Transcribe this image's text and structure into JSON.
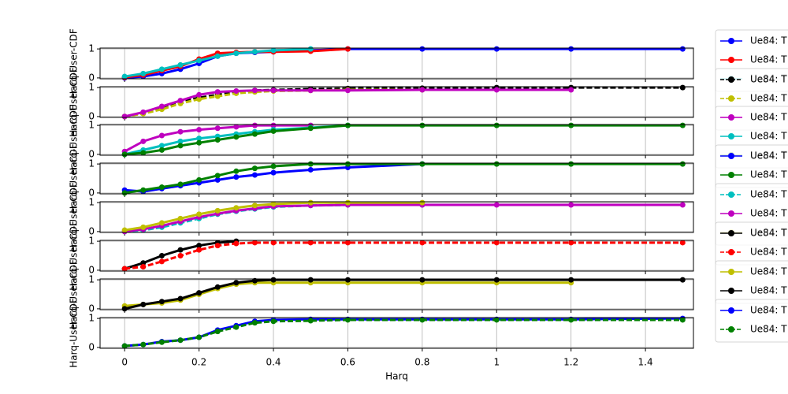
{
  "chart_data": [
    {
      "type": "line",
      "y_label": "Harq-User-CDF",
      "x": [
        0,
        0.05,
        0.1,
        0.15,
        0.2,
        0.25,
        0.3,
        0.35,
        0.4,
        0.5,
        0.6,
        0.8,
        1.0,
        1.2,
        1.5
      ],
      "xlim": [
        -0.066,
        1.529
      ],
      "xticks": [
        {
          "value": 0,
          "label": "0.0"
        },
        0.2,
        0.4,
        0.6,
        0.8,
        {
          "value": 1,
          "label": "1.0"
        },
        1.2,
        1.4
      ],
      "ylim": [
        -0.03,
        1.03
      ],
      "yticks": [
        0,
        1
      ],
      "grid": true,
      "series": [
        {
          "name": "Ue84: T",
          "color": "#0000ff",
          "linestyle": "-",
          "values": [
            0,
            0.05,
            0.15,
            0.3,
            0.5,
            0.75,
            0.85,
            0.88,
            0.9,
            0.95,
            1,
            1,
            1,
            1,
            1
          ]
        },
        {
          "name": "Ue84: T",
          "color": "#ff0000",
          "linestyle": "-",
          "values": [
            0.02,
            0.1,
            0.25,
            0.4,
            0.65,
            0.85,
            0.88,
            0.9,
            0.9,
            0.92,
            1,
            null,
            null,
            null,
            null
          ]
        },
        {
          "name": "Ue84: T",
          "color": "#00bfbf",
          "linestyle": "-",
          "values": [
            0.05,
            0.15,
            0.3,
            0.45,
            0.6,
            0.75,
            0.85,
            0.9,
            0.95,
            1,
            null,
            null,
            null,
            null,
            null
          ]
        }
      ]
    },
    {
      "type": "line",
      "y_label": "Harq-User-CDF",
      "x": [
        0,
        0.05,
        0.1,
        0.15,
        0.2,
        0.25,
        0.3,
        0.35,
        0.4,
        0.5,
        0.6,
        0.8,
        1.0,
        1.2,
        1.5
      ],
      "xlim": [
        -0.066,
        1.529
      ],
      "xticks": [
        0,
        0.2,
        0.4,
        0.6,
        0.8,
        1,
        1.2,
        1.4
      ],
      "ylim": [
        -0.03,
        1.03
      ],
      "yticks": [
        0,
        1
      ],
      "grid": true,
      "series": [
        {
          "name": "Ue84: T",
          "color": "#000000",
          "linestyle": "--",
          "values": [
            0,
            0.12,
            0.3,
            0.5,
            0.65,
            0.75,
            0.85,
            0.9,
            0.92,
            0.95,
            0.97,
            0.98,
            1,
            1,
            1
          ]
        },
        {
          "name": "Ue84: T",
          "color": "#bfbf00",
          "linestyle": "--",
          "values": [
            0,
            0.1,
            0.25,
            0.45,
            0.6,
            0.7,
            0.8,
            0.85,
            0.88,
            0.9,
            0.92,
            0.92,
            null,
            null,
            null
          ]
        },
        {
          "name": "Ue84: T",
          "color": "#bf00bf",
          "linestyle": "-",
          "values": [
            0,
            0.15,
            0.35,
            0.55,
            0.75,
            0.85,
            0.88,
            0.9,
            0.9,
            0.9,
            0.9,
            0.92,
            0.92,
            0.92,
            null
          ]
        }
      ]
    },
    {
      "type": "line",
      "y_label": "Harq-User-CDF",
      "x": [
        0,
        0.05,
        0.1,
        0.15,
        0.2,
        0.25,
        0.3,
        0.35,
        0.4,
        0.5,
        0.6,
        0.8,
        1.0,
        1.2,
        1.5
      ],
      "xlim": [
        -0.066,
        1.529
      ],
      "xticks": [
        0,
        0.2,
        0.4,
        0.6,
        0.8,
        1,
        1.2,
        1.4
      ],
      "ylim": [
        -0.03,
        1.03
      ],
      "yticks": [
        0,
        1
      ],
      "grid": true,
      "series": [
        {
          "name": "Ue84: T",
          "color": "#bf00bf",
          "linestyle": "-",
          "values": [
            0.1,
            0.45,
            0.65,
            0.78,
            0.85,
            0.9,
            0.95,
            1,
            1,
            1,
            null,
            null,
            null,
            null,
            null
          ]
        },
        {
          "name": "Ue84: T",
          "color": "#00bfbf",
          "linestyle": "-",
          "values": [
            0,
            0.15,
            0.3,
            0.45,
            0.55,
            0.62,
            0.7,
            0.78,
            0.85,
            0.92,
            1,
            null,
            null,
            null,
            null
          ]
        },
        {
          "name": "Ue84: T",
          "color": "#008000",
          "linestyle": "-",
          "values": [
            0,
            0.05,
            0.15,
            0.3,
            0.4,
            0.5,
            0.6,
            0.7,
            0.8,
            0.9,
            1,
            1,
            1,
            1,
            1
          ]
        }
      ]
    },
    {
      "type": "line",
      "y_label": "Harq-User-CDF",
      "x": [
        0,
        0.05,
        0.1,
        0.15,
        0.2,
        0.25,
        0.3,
        0.35,
        0.4,
        0.5,
        0.6,
        0.8,
        1.0,
        1.2,
        1.5
      ],
      "xlim": [
        -0.066,
        1.529
      ],
      "xticks": [
        0,
        0.2,
        0.4,
        0.6,
        0.8,
        1,
        1.2,
        1.4
      ],
      "ylim": [
        -0.03,
        1.03
      ],
      "yticks": [
        0,
        1
      ],
      "grid": true,
      "series": [
        {
          "name": "Ue84: T",
          "color": "#0000ff",
          "linestyle": "-",
          "values": [
            0.1,
            0.05,
            0.15,
            0.25,
            0.35,
            0.45,
            0.55,
            0.62,
            0.7,
            0.8,
            0.88,
            1,
            null,
            null,
            null
          ]
        },
        {
          "name": "Ue84: T",
          "color": "#008000",
          "linestyle": "-",
          "values": [
            0,
            0.1,
            0.2,
            0.3,
            0.45,
            0.6,
            0.75,
            0.85,
            0.92,
            1,
            1,
            1,
            1,
            1,
            1
          ]
        }
      ]
    },
    {
      "type": "line",
      "y_label": "Harq-User-CDF",
      "x": [
        0,
        0.05,
        0.1,
        0.15,
        0.2,
        0.25,
        0.3,
        0.35,
        0.4,
        0.5,
        0.6,
        0.8,
        1.0,
        1.2,
        1.5
      ],
      "xlim": [
        -0.066,
        1.529
      ],
      "xticks": [
        0,
        0.2,
        0.4,
        0.6,
        0.8,
        1,
        1.2,
        1.4
      ],
      "ylim": [
        -0.03,
        1.03
      ],
      "yticks": [
        0,
        1
      ],
      "grid": true,
      "series": [
        {
          "name": "Ue84: T",
          "color": "#00bfbf",
          "linestyle": "--",
          "values": [
            0,
            0.05,
            0.15,
            0.3,
            0.45,
            0.6,
            0.7,
            0.78,
            0.85,
            0.9,
            0.92,
            0.92,
            null,
            null,
            null
          ]
        },
        {
          "name": "Ue84: T",
          "color": "#bf00bf",
          "linestyle": "-",
          "values": [
            0,
            0.08,
            0.2,
            0.35,
            0.5,
            0.62,
            0.72,
            0.8,
            0.87,
            0.9,
            0.92,
            0.92,
            0.92,
            0.92,
            0.92
          ]
        },
        {
          "name": "Ue84: T",
          "color": "#bfbf00",
          "linestyle": "-",
          "values": [
            0.05,
            0.15,
            0.3,
            0.45,
            0.6,
            0.72,
            0.82,
            0.9,
            0.95,
            1,
            1,
            1,
            null,
            null,
            null
          ]
        }
      ]
    },
    {
      "type": "line",
      "y_label": "Harq-User-CDF",
      "x": [
        0,
        0.05,
        0.1,
        0.15,
        0.2,
        0.25,
        0.3,
        0.35,
        0.4,
        0.5,
        0.6,
        0.8,
        1.0,
        1.2,
        1.5
      ],
      "xlim": [
        -0.066,
        1.529
      ],
      "xticks": [
        0,
        0.2,
        0.4,
        0.6,
        0.8,
        1,
        1.2,
        1.4
      ],
      "ylim": [
        -0.03,
        1.03
      ],
      "yticks": [
        0,
        1
      ],
      "grid": true,
      "series": [
        {
          "name": "Ue84: T",
          "color": "#000000",
          "linestyle": "-",
          "values": [
            0.05,
            0.25,
            0.5,
            0.7,
            0.85,
            0.95,
            1,
            null,
            null,
            null,
            null,
            null,
            null,
            null,
            null
          ]
        },
        {
          "name": "Ue84: T",
          "color": "#ff0000",
          "linestyle": "--",
          "values": [
            0.05,
            0.12,
            0.3,
            0.5,
            0.7,
            0.85,
            0.92,
            0.95,
            0.95,
            0.95,
            0.95,
            0.95,
            0.95,
            0.95,
            0.95
          ]
        }
      ]
    },
    {
      "type": "line",
      "y_label": "Harq-User-CDF",
      "x": [
        0,
        0.05,
        0.1,
        0.15,
        0.2,
        0.25,
        0.3,
        0.35,
        0.4,
        0.5,
        0.6,
        0.8,
        1.0,
        1.2,
        1.5
      ],
      "xlim": [
        -0.066,
        1.529
      ],
      "xticks": [
        0,
        0.2,
        0.4,
        0.6,
        0.8,
        1,
        1.2,
        1.4
      ],
      "ylim": [
        -0.03,
        1.03
      ],
      "yticks": [
        0,
        1
      ],
      "grid": true,
      "series": [
        {
          "name": "Ue84: T",
          "color": "#bfbf00",
          "linestyle": "-",
          "values": [
            0.1,
            0.15,
            0.2,
            0.3,
            0.5,
            0.7,
            0.85,
            0.9,
            0.9,
            0.9,
            0.9,
            0.9,
            0.9,
            0.9,
            null
          ]
        },
        {
          "name": "Ue84: T",
          "color": "#000000",
          "linestyle": "-",
          "values": [
            0,
            0.15,
            0.25,
            0.35,
            0.55,
            0.75,
            0.9,
            0.97,
            1,
            1,
            1,
            1,
            1,
            1,
            1
          ]
        }
      ]
    },
    {
      "type": "line",
      "y_label": "Harq-User-CDF",
      "x_label": "Harq",
      "show_xticks": true,
      "x": [
        0,
        0.05,
        0.1,
        0.15,
        0.2,
        0.25,
        0.3,
        0.35,
        0.4,
        0.5,
        0.6,
        0.8,
        1.0,
        1.2,
        1.5
      ],
      "xlim": [
        -0.066,
        1.529
      ],
      "xticks": [
        0,
        0.2,
        0.4,
        0.6,
        0.8,
        1,
        1.2,
        1.4
      ],
      "ylim": [
        -0.03,
        1.03
      ],
      "yticks": [
        0,
        1
      ],
      "grid": true,
      "series": [
        {
          "name": "Ue84: T",
          "color": "#0000ff",
          "linestyle": "-",
          "values": [
            0.05,
            0.1,
            0.2,
            0.25,
            0.35,
            0.6,
            0.75,
            0.9,
            0.95,
            0.97,
            0.97,
            0.97,
            0.97,
            0.97,
            1
          ]
        },
        {
          "name": "Ue84: T",
          "color": "#008000",
          "linestyle": "--",
          "values": [
            0.05,
            0.1,
            0.18,
            0.25,
            0.35,
            0.55,
            0.7,
            0.85,
            0.9,
            0.92,
            0.95,
            0.95,
            0.95,
            0.95,
            0.95
          ]
        }
      ]
    }
  ]
}
